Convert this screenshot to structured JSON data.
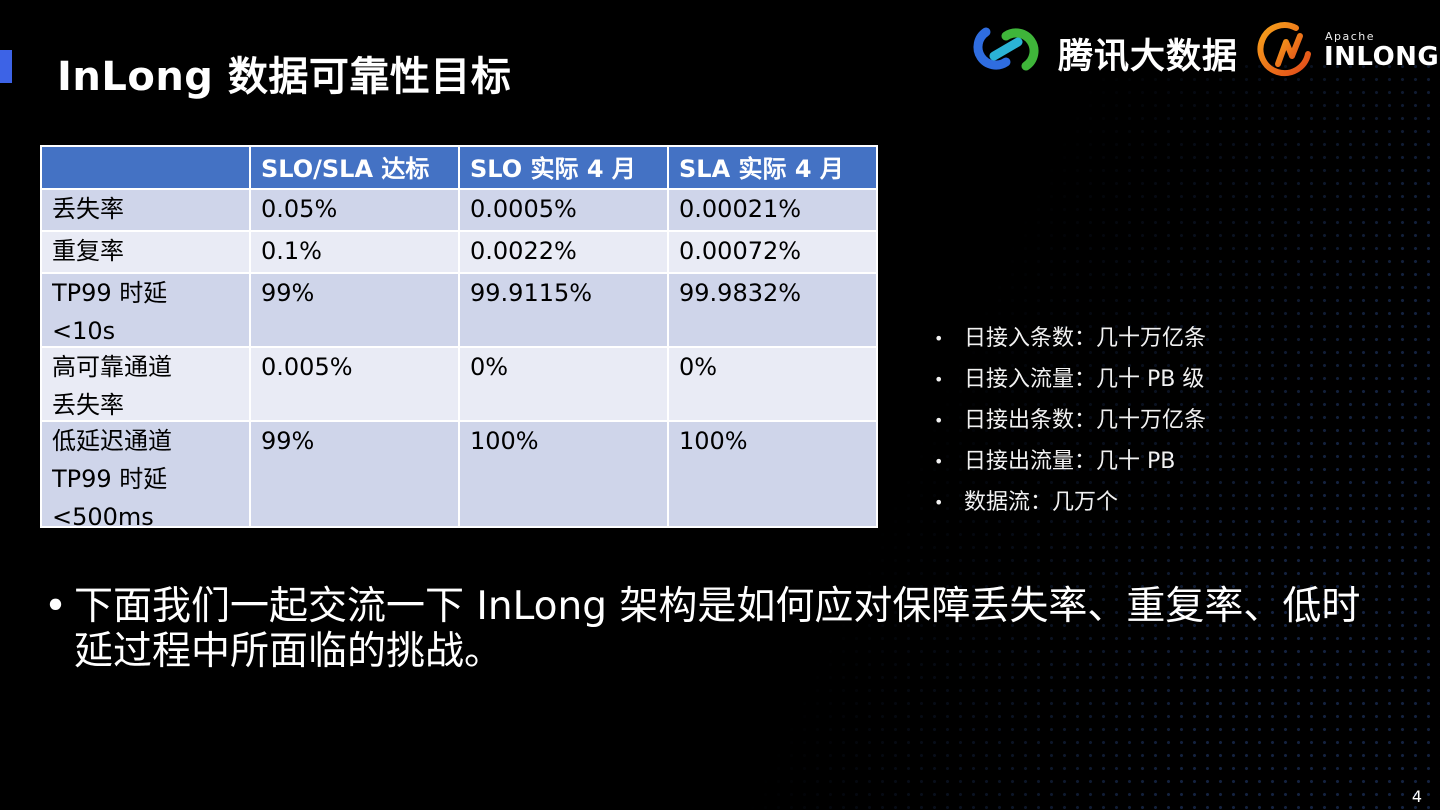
{
  "title": "InLong 数据可靠性目标",
  "brand": {
    "tencent_text": "腾讯大数据",
    "apache_label": "Apache",
    "inlong_label": "INLONG"
  },
  "table": {
    "headers": [
      "",
      "SLO/SLA 达标",
      "SLO 实际 4 月",
      "SLA 实际 4 月"
    ],
    "rows": [
      [
        "丢失率",
        "0.05%",
        "0.0005%",
        "0.00021%"
      ],
      [
        "重复率",
        "0.1%",
        "0.0022%",
        "0.00072%"
      ],
      [
        "TP99 时延 <10s",
        "99%",
        "99.9115%",
        "99.9832%"
      ],
      [
        "高可靠通道丢失率",
        "0.005%",
        "0%",
        "0%"
      ],
      [
        "低延迟通道TP99 时延<500ms",
        "99%",
        "100%",
        "100%"
      ]
    ]
  },
  "stats": [
    "日接入条数：几十万亿条",
    "日接入流量：几十 PB 级",
    "日接出条数：几十万亿条",
    "日接出流量：几十 PB",
    "数据流：几万个"
  ],
  "main_bullet": "下面我们一起交流一下 InLong 架构是如何应对保障丢失率、重复率、低时延过程中所面临的挑战。",
  "page_number": "4",
  "colors": {
    "accent": "#3d63e6",
    "table_header": "#4472c4",
    "row_odd": "#cfd5ea",
    "row_even": "#e9ebf5"
  }
}
